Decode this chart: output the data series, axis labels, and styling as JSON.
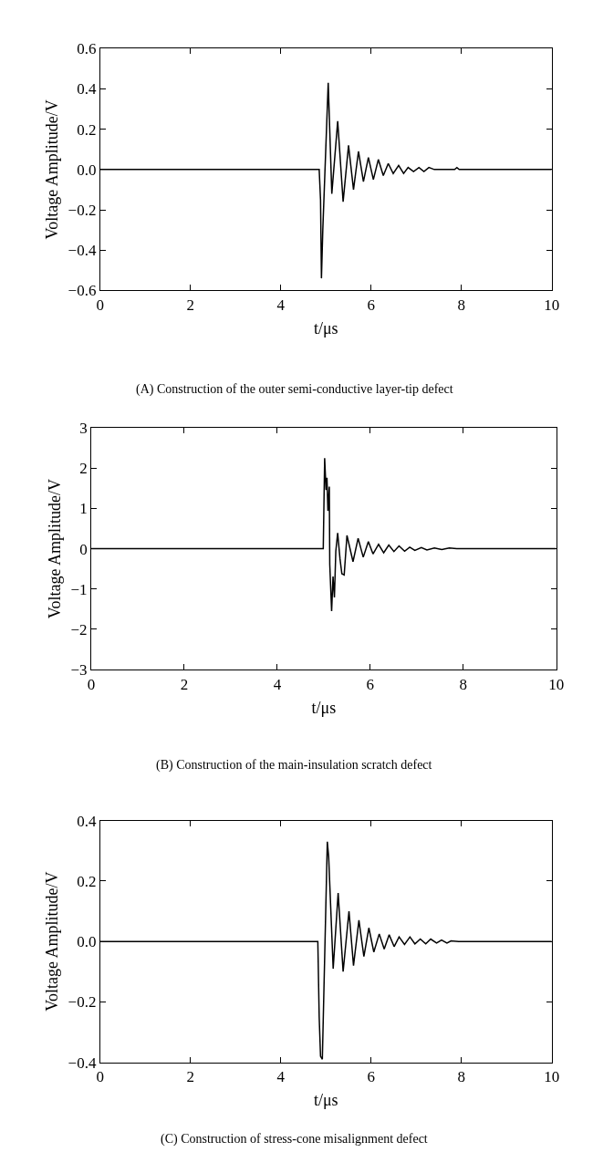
{
  "chart_data": [
    {
      "type": "line",
      "xlabel": "t/μs",
      "ylabel": "Voltage Amplitude/V",
      "annotations": [
        "(A) Construction of the outer semi-conductive layer-tip defect"
      ],
      "xlim": [
        0,
        10
      ],
      "ylim": [
        -0.6,
        0.6
      ],
      "xticks": [
        0,
        2,
        4,
        6,
        8,
        10
      ],
      "yticks": [
        {
          "value": -0.6,
          "label": "−0.6"
        },
        {
          "value": -0.4,
          "label": "−0.4"
        },
        {
          "value": -0.2,
          "label": "−0.2"
        },
        {
          "value": 0,
          "label": "0.0"
        },
        {
          "value": 0.2,
          "label": "0.2"
        },
        {
          "value": 0.4,
          "label": "0.4"
        },
        {
          "value": 0.6,
          "label": "0.6"
        }
      ],
      "marker": "none",
      "line_style": "solid",
      "series": [
        {
          "color": "#000000",
          "x": [
            0,
            4.85,
            4.88,
            4.9,
            4.93,
            5.05,
            5.13,
            5.26,
            5.38,
            5.5,
            5.61,
            5.72,
            5.83,
            5.94,
            6.05,
            6.16,
            6.27,
            6.38,
            6.49,
            6.61,
            6.72,
            6.82,
            6.94,
            7.06,
            7.17,
            7.28,
            7.4,
            7.47,
            7.85,
            7.9,
            7.95,
            10
          ],
          "values": [
            0,
            0,
            -0.15,
            -0.54,
            -0.3,
            0.43,
            -0.12,
            0.24,
            -0.16,
            0.12,
            -0.1,
            0.09,
            -0.06,
            0.06,
            -0.05,
            0.05,
            -0.03,
            0.03,
            -0.02,
            0.02,
            -0.02,
            0.01,
            -0.01,
            0.01,
            -0.01,
            0.01,
            0,
            0,
            0,
            0.01,
            0,
            0
          ]
        }
      ]
    },
    {
      "type": "line",
      "xlabel": "t/μs",
      "ylabel": "Voltage Amplitude/V",
      "annotations": [
        "(B) Construction of the main-insulation scratch defect"
      ],
      "xlim": [
        0,
        10
      ],
      "ylim": [
        -3,
        3
      ],
      "xticks": [
        0,
        2,
        4,
        6,
        8,
        10
      ],
      "yticks": [
        {
          "value": -3,
          "label": "−3"
        },
        {
          "value": -2,
          "label": "−2"
        },
        {
          "value": -1,
          "label": "−1"
        },
        {
          "value": 0,
          "label": "0"
        },
        {
          "value": 1,
          "label": "1"
        },
        {
          "value": 2,
          "label": "2"
        },
        {
          "value": 3,
          "label": "3"
        }
      ],
      "marker": "none",
      "line_style": "solid",
      "series": [
        {
          "color": "#000000",
          "x": [
            0,
            4.99,
            5.02,
            5.05,
            5.07,
            5.09,
            5.12,
            5.13,
            5.17,
            5.2,
            5.23,
            5.26,
            5.3,
            5.35,
            5.39,
            5.44,
            5.5,
            5.63,
            5.74,
            5.85,
            5.96,
            6.06,
            6.18,
            6.29,
            6.4,
            6.51,
            6.62,
            6.74,
            6.85,
            6.96,
            7.1,
            7.22,
            7.38,
            7.54,
            7.7,
            7.86,
            10
          ],
          "values": [
            0,
            0,
            2.25,
            1.46,
            1.76,
            0.94,
            1.54,
            -0.39,
            -1.55,
            -0.69,
            -1.21,
            -0.06,
            0.39,
            -0.25,
            -0.62,
            -0.65,
            0.33,
            -0.32,
            0.26,
            -0.21,
            0.18,
            -0.13,
            0.11,
            -0.1,
            0.09,
            -0.07,
            0.07,
            -0.06,
            0.04,
            -0.04,
            0.03,
            -0.03,
            0.02,
            -0.02,
            0.02,
            0,
            0
          ]
        }
      ]
    },
    {
      "type": "line",
      "xlabel": "t/μs",
      "ylabel": "Voltage Amplitude/V",
      "annotations": [
        "(C) Construction of stress-cone misalignment defect"
      ],
      "xlim": [
        0,
        10
      ],
      "ylim": [
        -0.4,
        0.4
      ],
      "xticks": [
        0,
        2,
        4,
        6,
        8,
        10
      ],
      "yticks": [
        {
          "value": -0.4,
          "label": "−0.4"
        },
        {
          "value": -0.2,
          "label": "−0.2"
        },
        {
          "value": 0,
          "label": "0.0"
        },
        {
          "value": 0.2,
          "label": "0.2"
        },
        {
          "value": 0.4,
          "label": "0.4"
        }
      ],
      "marker": "none",
      "line_style": "solid",
      "series": [
        {
          "color": "#000000",
          "x": [
            0,
            4.82,
            4.85,
            4.88,
            4.92,
            5.03,
            5.06,
            5.16,
            5.27,
            5.38,
            5.51,
            5.61,
            5.73,
            5.84,
            5.95,
            6.06,
            6.18,
            6.29,
            6.4,
            6.51,
            6.62,
            6.74,
            6.86,
            6.97,
            7.09,
            7.21,
            7.32,
            7.45,
            7.56,
            7.68,
            7.77,
            7.94,
            10
          ],
          "values": [
            0,
            0,
            -0.25,
            -0.38,
            -0.39,
            0.33,
            0.28,
            -0.09,
            0.16,
            -0.1,
            0.1,
            -0.08,
            0.07,
            -0.05,
            0.045,
            -0.035,
            0.025,
            -0.025,
            0.022,
            -0.017,
            0.015,
            -0.01,
            0.015,
            -0.008,
            0.008,
            -0.008,
            0.008,
            -0.005,
            0.005,
            -0.005,
            0.002,
            0,
            0
          ]
        }
      ]
    }
  ]
}
